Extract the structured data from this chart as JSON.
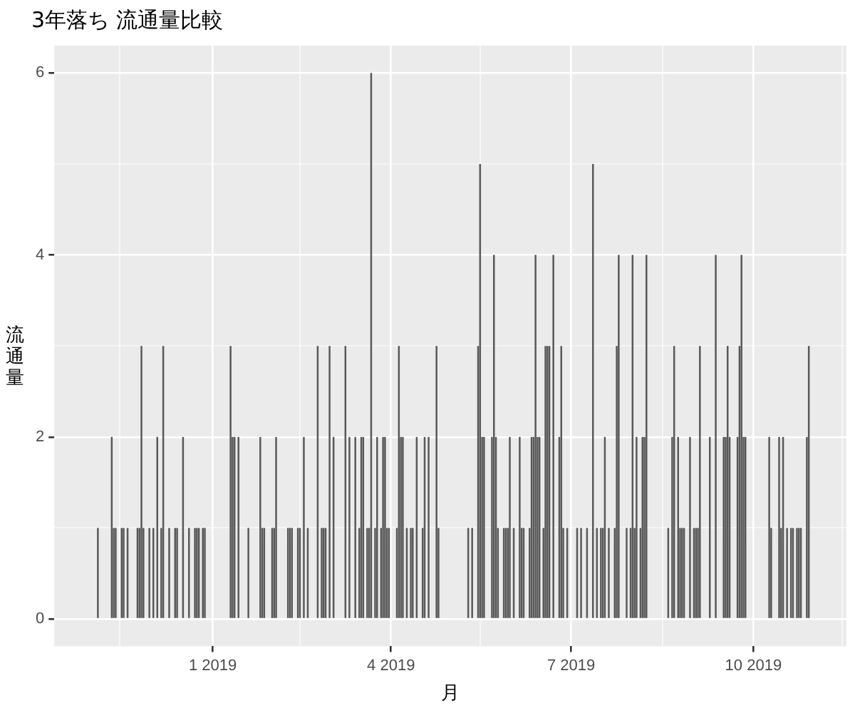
{
  "chart_data": {
    "type": "bar",
    "title": "3年落ち 流通量比較",
    "xlabel": "月",
    "ylabel": "流通量",
    "color": "#595959",
    "grid": true,
    "xlim": [
      "2018-10-13",
      "2019-11-17"
    ],
    "xticks": [
      {
        "value": "2018-11-15",
        "label": null
      },
      {
        "value": "2019-01-01",
        "label": "1 2019"
      },
      {
        "value": "2019-02-14",
        "label": null
      },
      {
        "value": "2019-04-01",
        "label": "4 2019"
      },
      {
        "value": "2019-05-16",
        "label": null
      },
      {
        "value": "2019-07-01",
        "label": "7 2019"
      },
      {
        "value": "2019-08-16",
        "label": null
      },
      {
        "value": "2019-10-01",
        "label": "10 2019"
      },
      {
        "value": "2019-11-15",
        "label": null
      }
    ],
    "ylim": [
      -0.3,
      6.3
    ],
    "yticks": [
      0,
      {
        "value": 1,
        "label": null
      },
      2,
      {
        "value": 3,
        "label": null
      },
      4,
      {
        "value": 5,
        "label": null
      },
      6
    ],
    "x": [
      "2018-11-04",
      "2018-11-11",
      "2018-11-12",
      "2018-11-13",
      "2018-11-16",
      "2018-11-17",
      "2018-11-19",
      "2018-11-24",
      "2018-11-25",
      "2018-11-26",
      "2018-11-27",
      "2018-11-30",
      "2018-12-02",
      "2018-12-04",
      "2018-12-06",
      "2018-12-07",
      "2018-12-10",
      "2018-12-13",
      "2018-12-14",
      "2018-12-17",
      "2018-12-20",
      "2018-12-23",
      "2018-12-24",
      "2018-12-25",
      "2018-12-27",
      "2018-12-28",
      "2019-01-10",
      "2019-01-11",
      "2019-01-12",
      "2019-01-14",
      "2019-01-19",
      "2019-01-25",
      "2019-01-26",
      "2019-01-27",
      "2019-01-31",
      "2019-02-01",
      "2019-02-02",
      "2019-02-08",
      "2019-02-09",
      "2019-02-10",
      "2019-02-13",
      "2019-02-14",
      "2019-02-16",
      "2019-02-18",
      "2019-02-23",
      "2019-02-25",
      "2019-02-26",
      "2019-02-27",
      "2019-03-01",
      "2019-03-03",
      "2019-03-09",
      "2019-03-11",
      "2019-03-14",
      "2019-03-16",
      "2019-03-17",
      "2019-03-18",
      "2019-03-20",
      "2019-03-21",
      "2019-03-22",
      "2019-03-24",
      "2019-03-25",
      "2019-03-27",
      "2019-03-28",
      "2019-03-29",
      "2019-03-30",
      "2019-03-31",
      "2019-04-04",
      "2019-04-05",
      "2019-04-06",
      "2019-04-07",
      "2019-04-09",
      "2019-04-11",
      "2019-04-12",
      "2019-04-14",
      "2019-04-17",
      "2019-04-18",
      "2019-04-20",
      "2019-04-24",
      "2019-04-25",
      "2019-05-10",
      "2019-05-12",
      "2019-05-15",
      "2019-05-16",
      "2019-05-17",
      "2019-05-18",
      "2019-05-22",
      "2019-05-23",
      "2019-05-24",
      "2019-05-25",
      "2019-05-28",
      "2019-05-29",
      "2019-05-30",
      "2019-05-31",
      "2019-06-02",
      "2019-06-05",
      "2019-06-06",
      "2019-06-07",
      "2019-06-10",
      "2019-06-11",
      "2019-06-12",
      "2019-06-13",
      "2019-06-14",
      "2019-06-15",
      "2019-06-17",
      "2019-06-18",
      "2019-06-19",
      "2019-06-20",
      "2019-06-22",
      "2019-06-25",
      "2019-06-26",
      "2019-06-27",
      "2019-06-29",
      "2019-07-04",
      "2019-07-06",
      "2019-07-09",
      "2019-07-12",
      "2019-07-14",
      "2019-07-16",
      "2019-07-17",
      "2019-07-18",
      "2019-07-20",
      "2019-07-23",
      "2019-07-24",
      "2019-07-25",
      "2019-07-29",
      "2019-07-31",
      "2019-08-01",
      "2019-08-02",
      "2019-08-03",
      "2019-08-05",
      "2019-08-06",
      "2019-08-07",
      "2019-08-08",
      "2019-08-19",
      "2019-08-21",
      "2019-08-22",
      "2019-08-24",
      "2019-08-25",
      "2019-08-26",
      "2019-08-27",
      "2019-08-30",
      "2019-09-01",
      "2019-09-02",
      "2019-09-03",
      "2019-09-04",
      "2019-09-09",
      "2019-09-12",
      "2019-09-16",
      "2019-09-17",
      "2019-09-18",
      "2019-09-19",
      "2019-09-23",
      "2019-09-24",
      "2019-09-25",
      "2019-09-26",
      "2019-09-27",
      "2019-10-09",
      "2019-10-10",
      "2019-10-14",
      "2019-10-15",
      "2019-10-16",
      "2019-10-18",
      "2019-10-20",
      "2019-10-21",
      "2019-10-23",
      "2019-10-24",
      "2019-10-25",
      "2019-10-28",
      "2019-10-29"
    ],
    "values": [
      1,
      2,
      1,
      1,
      1,
      1,
      1,
      1,
      1,
      3,
      1,
      1,
      1,
      2,
      1,
      3,
      1,
      1,
      1,
      2,
      1,
      1,
      1,
      1,
      1,
      1,
      3,
      2,
      2,
      2,
      1,
      2,
      1,
      1,
      1,
      1,
      2,
      1,
      1,
      1,
      1,
      1,
      2,
      1,
      3,
      1,
      1,
      1,
      3,
      2,
      3,
      2,
      2,
      1,
      2,
      2,
      1,
      1,
      6,
      1,
      2,
      1,
      2,
      2,
      1,
      1,
      1,
      3,
      2,
      2,
      1,
      1,
      1,
      2,
      1,
      2,
      2,
      3,
      1,
      1,
      1,
      3,
      5,
      2,
      2,
      2,
      4,
      2,
      1,
      1,
      1,
      1,
      2,
      1,
      2,
      1,
      1,
      1,
      2,
      2,
      4,
      2,
      2,
      1,
      3,
      3,
      3,
      4,
      2,
      3,
      1,
      1,
      1,
      1,
      1,
      5,
      1,
      1,
      1,
      2,
      1,
      1,
      3,
      4,
      1,
      1,
      4,
      1,
      2,
      1,
      2,
      2,
      4,
      1,
      2,
      3,
      2,
      1,
      1,
      1,
      2,
      1,
      1,
      1,
      3,
      2,
      4,
      2,
      2,
      3,
      2,
      2,
      3,
      4,
      2,
      2,
      2,
      1,
      2,
      1,
      2,
      1,
      1,
      1,
      1,
      1,
      1,
      2,
      3
    ]
  }
}
